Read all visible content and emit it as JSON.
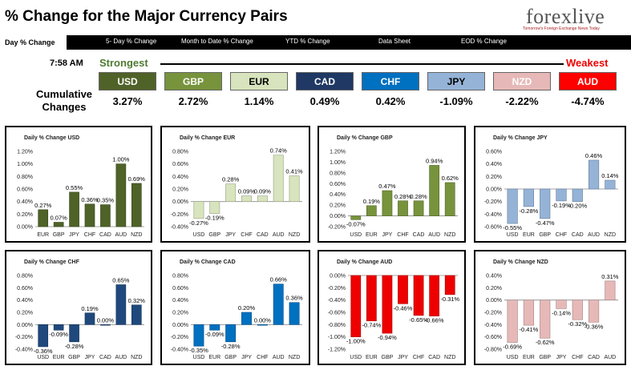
{
  "header": {
    "title": "% Change for the Major Currency Pairs",
    "logo_main": "forexlive",
    "logo_sub": "Tomorrow's Foreign Exchange News Today"
  },
  "nav": {
    "items": [
      "Day % Change",
      "5- Day % Change",
      "Month to Date % Change",
      "YTD % Change",
      "Data Sheet",
      "EOD % Change"
    ]
  },
  "summary": {
    "time": "7:58 AM",
    "strongest": "Strongest",
    "weakest": "Weakest",
    "cumulative_label": "Cumulative Changes",
    "currencies": [
      {
        "code": "USD",
        "value": "3.27%",
        "color": "#4f6228",
        "text": "#ffffff"
      },
      {
        "code": "GBP",
        "value": "2.72%",
        "color": "#77933c",
        "text": "#ffffff"
      },
      {
        "code": "EUR",
        "value": "1.14%",
        "color": "#d7e4bd",
        "text": "#000000"
      },
      {
        "code": "CAD",
        "value": "0.49%",
        "color": "#1f3864",
        "text": "#ffffff"
      },
      {
        "code": "CHF",
        "value": "0.42%",
        "color": "#0070c0",
        "text": "#ffffff"
      },
      {
        "code": "JPY",
        "value": "-1.09%",
        "color": "#95b3d7",
        "text": "#000000"
      },
      {
        "code": "NZD",
        "value": "-2.22%",
        "color": "#e6b9b8",
        "text": "#ffffff"
      },
      {
        "code": "AUD",
        "value": "-4.74%",
        "color": "#ff0000",
        "text": "#ffffff"
      }
    ]
  },
  "chart_data": [
    {
      "type": "bar",
      "title": "Daily % Change USD",
      "categories": [
        "EUR",
        "GBP",
        "JPY",
        "CHF",
        "CAD",
        "AUD",
        "NZD"
      ],
      "values": [
        0.27,
        0.07,
        0.55,
        0.36,
        0.35,
        1.0,
        0.69
      ],
      "ylim": [
        0,
        1.2
      ],
      "yticks": [
        0,
        0.2,
        0.4,
        0.6,
        0.8,
        1.0,
        1.2
      ],
      "color": "#4f6228"
    },
    {
      "type": "bar",
      "title": "Daily % Change EUR",
      "categories": [
        "USD",
        "GBP",
        "JPY",
        "CHF",
        "CAD",
        "AUD",
        "NZD"
      ],
      "values": [
        -0.27,
        -0.19,
        0.28,
        0.09,
        0.09,
        0.74,
        0.41
      ],
      "ylim": [
        -0.4,
        0.8
      ],
      "yticks": [
        -0.4,
        -0.2,
        0,
        0.2,
        0.4,
        0.6,
        0.8
      ],
      "color": "#d7e4bd"
    },
    {
      "type": "bar",
      "title": "Daily % Change GBP",
      "categories": [
        "USD",
        "EUR",
        "JPY",
        "CHF",
        "CAD",
        "AUD",
        "NZD"
      ],
      "values": [
        -0.07,
        0.19,
        0.47,
        0.28,
        0.28,
        0.94,
        0.62
      ],
      "ylim": [
        -0.2,
        1.2
      ],
      "yticks": [
        -0.2,
        0,
        0.2,
        0.4,
        0.6,
        0.8,
        1.0,
        1.2
      ],
      "color": "#77933c"
    },
    {
      "type": "bar",
      "title": "Daily % Change JPY",
      "categories": [
        "USD",
        "EUR",
        "GBP",
        "CHF",
        "CAD",
        "AUD",
        "NZD"
      ],
      "values": [
        -0.55,
        -0.28,
        -0.47,
        -0.19,
        -0.2,
        0.46,
        0.14
      ],
      "ylim": [
        -0.6,
        0.6
      ],
      "yticks": [
        -0.6,
        -0.4,
        -0.2,
        0,
        0.2,
        0.4,
        0.6
      ],
      "color": "#95b3d7"
    },
    {
      "type": "bar",
      "title": "Daily % Change CHF",
      "categories": [
        "USD",
        "EUR",
        "GBP",
        "JPY",
        "CAD",
        "AUD",
        "NZD"
      ],
      "values": [
        -0.36,
        -0.09,
        -0.28,
        0.19,
        0.0,
        0.65,
        0.32
      ],
      "ylim": [
        -0.4,
        0.8
      ],
      "yticks": [
        -0.4,
        -0.2,
        0,
        0.2,
        0.4,
        0.6,
        0.8
      ],
      "color": "#1f497d"
    },
    {
      "type": "bar",
      "title": "Daily % Change CAD",
      "categories": [
        "USD",
        "EUR",
        "GBP",
        "JPY",
        "CHF",
        "AUD",
        "NZD"
      ],
      "values": [
        -0.35,
        -0.09,
        -0.28,
        0.2,
        0.0,
        0.66,
        0.36
      ],
      "ylim": [
        -0.4,
        0.8
      ],
      "yticks": [
        -0.4,
        -0.2,
        0,
        0.2,
        0.4,
        0.6,
        0.8
      ],
      "color": "#0070c0"
    },
    {
      "type": "bar",
      "title": "Daily % Change AUD",
      "categories": [
        "USD",
        "EUR",
        "GBP",
        "JPY",
        "CHF",
        "CAD",
        "NZD"
      ],
      "values": [
        -1.0,
        -0.74,
        -0.94,
        -0.46,
        -0.65,
        -0.66,
        -0.31
      ],
      "ylim": [
        -1.2,
        0
      ],
      "yticks": [
        -1.2,
        -1.0,
        -0.8,
        -0.6,
        -0.4,
        -0.2,
        0
      ],
      "color": "#ee0000"
    },
    {
      "type": "bar",
      "title": "Daily % Change NZD",
      "categories": [
        "USD",
        "EUR",
        "GBP",
        "JPY",
        "CHF",
        "CAD",
        "AUD"
      ],
      "values": [
        -0.69,
        -0.41,
        -0.62,
        -0.14,
        -0.32,
        -0.36,
        0.31
      ],
      "ylim": [
        -0.8,
        0.4
      ],
      "yticks": [
        -0.8,
        -0.6,
        -0.4,
        -0.2,
        0,
        0.2,
        0.4
      ],
      "color": "#e6b9b8"
    }
  ]
}
